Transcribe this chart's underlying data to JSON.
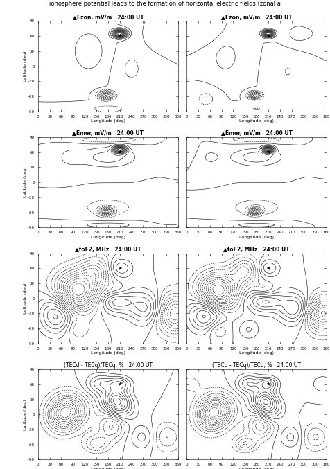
{
  "title_text": "ionosphere potential leads to the formation of horizontal electric fields (zonal a",
  "titles_left": [
    "▲Ezon, mV/m   24:00 UT",
    "▲Emer, mV/m   24:00 UT",
    "▲foF2, MHz   24:00 UT",
    "(TECd - TECq)/TECq, %   24:00 UT"
  ],
  "titles_right": [
    "▲Ezon, mV/m   24:00 UT",
    "▲Emer, mV/m   24:00 UT",
    "▲foF2, MHz   24:00 UT",
    "(TECd - TECq)/TECq, %   24:00 UT"
  ],
  "xlabel": "Longitude (deg)",
  "ylabel": "Latitude (deg)",
  "xlim": [
    0,
    360
  ],
  "ylim": [
    -90,
    90
  ],
  "xticks": [
    0,
    30,
    60,
    90,
    120,
    150,
    180,
    210,
    240,
    270,
    300,
    330,
    360
  ],
  "yticks": [
    -90,
    -60,
    -30,
    0,
    30,
    60,
    90
  ],
  "star_lon": 210,
  "star_lat": 61,
  "background_color": "#ffffff"
}
